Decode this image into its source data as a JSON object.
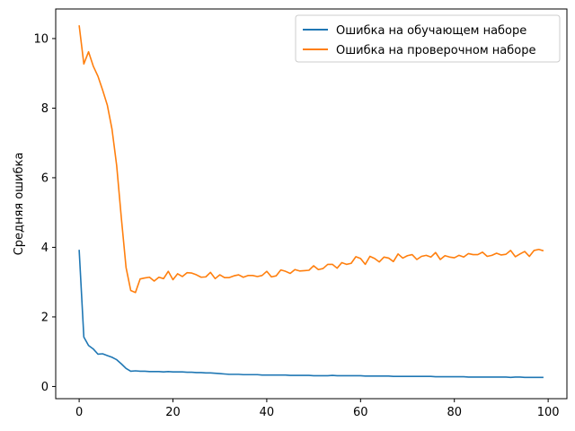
{
  "chart_data": {
    "type": "line",
    "title": "",
    "xlabel": "",
    "ylabel": "Средняя ошибка",
    "xlim": [
      -5,
      104
    ],
    "ylim": [
      -0.35,
      10.85
    ],
    "xticks": [
      0,
      20,
      40,
      60,
      80,
      100
    ],
    "yticks": [
      0,
      2,
      4,
      6,
      8,
      10
    ],
    "grid": false,
    "legend_position": "top-right",
    "series": [
      {
        "name": "Ошибка на обучающем наборе",
        "color": "#1f77b4",
        "x": [
          0,
          1,
          2,
          3,
          4,
          5,
          6,
          7,
          8,
          9,
          10,
          11,
          12,
          13,
          14,
          15,
          16,
          17,
          18,
          19,
          20,
          21,
          22,
          23,
          24,
          25,
          26,
          27,
          28,
          29,
          30,
          31,
          32,
          33,
          34,
          35,
          36,
          37,
          38,
          39,
          40,
          41,
          42,
          43,
          44,
          45,
          46,
          47,
          48,
          49,
          50,
          51,
          52,
          53,
          54,
          55,
          56,
          57,
          58,
          59,
          60,
          61,
          62,
          63,
          64,
          65,
          66,
          67,
          68,
          69,
          70,
          71,
          72,
          73,
          74,
          75,
          76,
          77,
          78,
          79,
          80,
          81,
          82,
          83,
          84,
          85,
          86,
          87,
          88,
          89,
          90,
          91,
          92,
          93,
          94,
          95,
          96,
          97,
          98,
          99
        ],
        "y": [
          3.93,
          1.42,
          1.18,
          1.08,
          0.93,
          0.94,
          0.89,
          0.84,
          0.77,
          0.65,
          0.52,
          0.44,
          0.45,
          0.44,
          0.44,
          0.43,
          0.43,
          0.43,
          0.42,
          0.43,
          0.42,
          0.42,
          0.42,
          0.41,
          0.41,
          0.4,
          0.4,
          0.39,
          0.39,
          0.38,
          0.37,
          0.36,
          0.35,
          0.35,
          0.35,
          0.34,
          0.34,
          0.34,
          0.34,
          0.33,
          0.33,
          0.33,
          0.33,
          0.33,
          0.33,
          0.32,
          0.32,
          0.32,
          0.32,
          0.32,
          0.31,
          0.31,
          0.31,
          0.31,
          0.32,
          0.31,
          0.31,
          0.31,
          0.31,
          0.31,
          0.31,
          0.3,
          0.3,
          0.3,
          0.3,
          0.3,
          0.3,
          0.29,
          0.29,
          0.29,
          0.29,
          0.29,
          0.29,
          0.29,
          0.29,
          0.29,
          0.28,
          0.28,
          0.28,
          0.28,
          0.28,
          0.28,
          0.28,
          0.27,
          0.27,
          0.27,
          0.27,
          0.27,
          0.27,
          0.27,
          0.27,
          0.27,
          0.26,
          0.27,
          0.27,
          0.26,
          0.26,
          0.26,
          0.26,
          0.26
        ]
      },
      {
        "name": "Ошибка на проверочном наборе",
        "color": "#ff7f0e",
        "x": [
          0,
          1,
          2,
          3,
          4,
          5,
          6,
          7,
          8,
          9,
          10,
          11,
          12,
          13,
          14,
          15,
          16,
          17,
          18,
          19,
          20,
          21,
          22,
          23,
          24,
          25,
          26,
          27,
          28,
          29,
          30,
          31,
          32,
          33,
          34,
          35,
          36,
          37,
          38,
          39,
          40,
          41,
          42,
          43,
          44,
          45,
          46,
          47,
          48,
          49,
          50,
          51,
          52,
          53,
          54,
          55,
          56,
          57,
          58,
          59,
          60,
          61,
          62,
          63,
          64,
          65,
          66,
          67,
          68,
          69,
          70,
          71,
          72,
          73,
          74,
          75,
          76,
          77,
          78,
          79,
          80,
          81,
          82,
          83,
          84,
          85,
          86,
          87,
          88,
          89,
          90,
          91,
          92,
          93,
          94,
          95,
          96,
          97,
          98,
          99
        ],
        "y": [
          10.38,
          9.27,
          9.62,
          9.21,
          8.92,
          8.52,
          8.09,
          7.4,
          6.35,
          4.84,
          3.42,
          2.76,
          2.7,
          3.09,
          3.12,
          3.14,
          3.03,
          3.14,
          3.1,
          3.31,
          3.07,
          3.24,
          3.16,
          3.27,
          3.26,
          3.21,
          3.14,
          3.15,
          3.28,
          3.1,
          3.21,
          3.13,
          3.13,
          3.18,
          3.21,
          3.14,
          3.19,
          3.19,
          3.16,
          3.19,
          3.31,
          3.15,
          3.18,
          3.35,
          3.31,
          3.25,
          3.36,
          3.32,
          3.33,
          3.34,
          3.47,
          3.36,
          3.39,
          3.51,
          3.51,
          3.4,
          3.56,
          3.51,
          3.54,
          3.73,
          3.68,
          3.51,
          3.74,
          3.68,
          3.58,
          3.72,
          3.69,
          3.59,
          3.81,
          3.69,
          3.76,
          3.79,
          3.65,
          3.74,
          3.77,
          3.72,
          3.85,
          3.65,
          3.76,
          3.72,
          3.7,
          3.77,
          3.72,
          3.82,
          3.79,
          3.79,
          3.86,
          3.74,
          3.77,
          3.83,
          3.78,
          3.8,
          3.91,
          3.73,
          3.81,
          3.88,
          3.74,
          3.91,
          3.94,
          3.9
        ]
      }
    ]
  }
}
